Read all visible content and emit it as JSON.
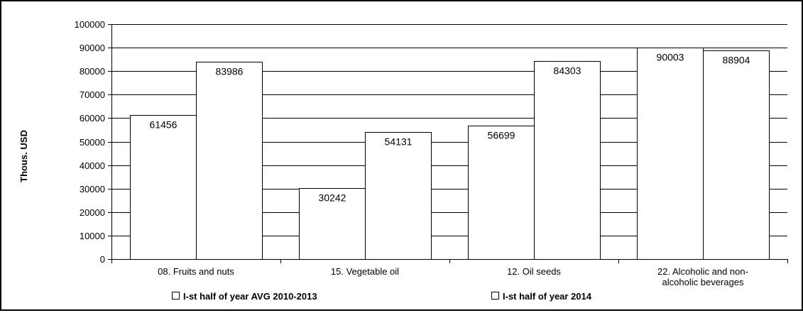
{
  "chart_data": {
    "type": "bar",
    "categories": [
      "08. Fruits and nuts",
      "15. Vegetable oil",
      "12. Oil seeds",
      "22. Alcoholic and non-alcoholic beverages"
    ],
    "category_label_lines": [
      [
        "08. Fruits and nuts"
      ],
      [
        "15. Vegetable oil"
      ],
      [
        "12. Oil seeds"
      ],
      [
        "22. Alcoholic and non-",
        "alcoholic beverages"
      ]
    ],
    "series": [
      {
        "name": "I-st half of year AVG 2010-2013",
        "values": [
          61456,
          30242,
          56699,
          90003
        ]
      },
      {
        "name": "I-st half of year 2014",
        "values": [
          83986,
          54131,
          84303,
          88904
        ]
      }
    ],
    "ylabel": "Thous. USD",
    "xlabel": "",
    "ylim": [
      0,
      100000
    ],
    "yticks": [
      0,
      10000,
      20000,
      30000,
      40000,
      50000,
      60000,
      70000,
      80000,
      90000,
      100000
    ],
    "grid": true,
    "legend_position": "bottom",
    "colors": {
      "bar_fill": "#ffffff",
      "bar_stroke": "#000000",
      "grid": "#000000"
    }
  }
}
